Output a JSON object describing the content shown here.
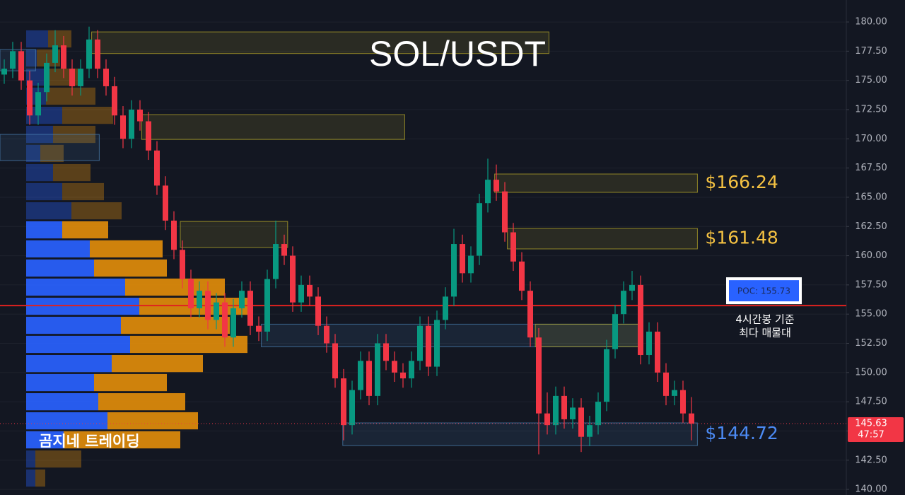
{
  "chart_data": {
    "type": "candlestick",
    "title": "SOL/USDT",
    "ylim": [
      139.52,
      181.88
    ],
    "yticks": [
      {
        "value": 140,
        "label": "140.00"
      },
      {
        "value": 142.5,
        "label": "142.50"
      },
      {
        "value": 145,
        "label": "145.00"
      },
      {
        "value": 147.5,
        "label": "147.50"
      },
      {
        "value": 150,
        "label": "150.00"
      },
      {
        "value": 152.5,
        "label": "152.50"
      },
      {
        "value": 155,
        "label": "155.00"
      },
      {
        "value": 157.5,
        "label": "157.50"
      },
      {
        "value": 160,
        "label": "160.00"
      },
      {
        "value": 162.5,
        "label": "162.50"
      },
      {
        "value": 165,
        "label": "165.00"
      },
      {
        "value": 167.5,
        "label": "167.50"
      },
      {
        "value": 170,
        "label": "170.00"
      },
      {
        "value": 172.5,
        "label": "172.50"
      },
      {
        "value": 175,
        "label": "175.00"
      },
      {
        "value": 177.5,
        "label": "177.50"
      },
      {
        "value": 180,
        "label": "180.00"
      }
    ],
    "grid": true,
    "up_color": "#089981",
    "down_color": "#f23645",
    "candles": [
      [
        175.5,
        176.8,
        174.7,
        176.0
      ],
      [
        176.0,
        178.3,
        175.2,
        177.5
      ],
      [
        177.5,
        178.3,
        174.2,
        175.0
      ],
      [
        175.0,
        175.8,
        171.2,
        172.0
      ],
      [
        172.0,
        174.8,
        171.2,
        174.0
      ],
      [
        174.0,
        177.3,
        173.2,
        176.5
      ],
      [
        176.5,
        179.3,
        175.7,
        178.0
      ],
      [
        178.0,
        178.8,
        175.2,
        176.0
      ],
      [
        176.0,
        176.8,
        173.7,
        174.5
      ],
      [
        174.5,
        176.8,
        173.7,
        176.0
      ],
      [
        176.0,
        179.6,
        175.2,
        178.5
      ],
      [
        178.5,
        179.3,
        175.2,
        176.0
      ],
      [
        176.0,
        176.8,
        173.7,
        174.5
      ],
      [
        174.5,
        175.3,
        171.2,
        172.0
      ],
      [
        172.0,
        172.8,
        169.2,
        170.0
      ],
      [
        170.0,
        173.3,
        169.2,
        172.5
      ],
      [
        172.5,
        173.3,
        170.7,
        171.5
      ],
      [
        171.5,
        172.3,
        168.2,
        169.0
      ],
      [
        169.0,
        169.8,
        165.2,
        166.0
      ],
      [
        166.0,
        166.8,
        162.2,
        163.0
      ],
      [
        163.0,
        163.8,
        159.7,
        160.5
      ],
      [
        160.5,
        161.3,
        157.2,
        158.0
      ],
      [
        158.0,
        158.8,
        154.7,
        155.5
      ],
      [
        155.5,
        157.8,
        154.7,
        157.0
      ],
      [
        157.0,
        157.8,
        153.7,
        154.5
      ],
      [
        154.5,
        156.8,
        153.7,
        156.0
      ],
      [
        156.0,
        156.8,
        152.2,
        153.0
      ],
      [
        153.0,
        156.3,
        152.2,
        155.5
      ],
      [
        155.5,
        157.8,
        154.7,
        157.0
      ],
      [
        157.0,
        157.8,
        153.2,
        154.0
      ],
      [
        154.0,
        154.8,
        152.7,
        153.5
      ],
      [
        153.5,
        158.8,
        152.7,
        158.0
      ],
      [
        158.0,
        163.0,
        157.2,
        161.0
      ],
      [
        161.0,
        161.8,
        159.2,
        160.0
      ],
      [
        160.0,
        160.8,
        155.2,
        156.0
      ],
      [
        156.0,
        158.3,
        155.2,
        157.5
      ],
      [
        157.5,
        158.3,
        155.7,
        156.5
      ],
      [
        156.5,
        157.3,
        153.2,
        154.0
      ],
      [
        154.0,
        154.8,
        151.7,
        152.5
      ],
      [
        152.5,
        153.3,
        148.7,
        149.5
      ],
      [
        149.5,
        150.3,
        144.2,
        145.5
      ],
      [
        145.5,
        149.3,
        144.7,
        148.5
      ],
      [
        148.5,
        151.8,
        147.7,
        151.0
      ],
      [
        151.0,
        151.8,
        147.2,
        148.0
      ],
      [
        148.0,
        153.3,
        147.2,
        152.5
      ],
      [
        152.5,
        153.3,
        150.2,
        151.0
      ],
      [
        151.0,
        151.8,
        149.2,
        150.0
      ],
      [
        150.0,
        150.8,
        148.7,
        149.5
      ],
      [
        149.5,
        151.8,
        148.7,
        151.0
      ],
      [
        151.0,
        154.8,
        150.2,
        154.0
      ],
      [
        154.0,
        154.8,
        149.7,
        150.5
      ],
      [
        150.5,
        155.3,
        149.7,
        154.5
      ],
      [
        154.5,
        157.3,
        153.7,
        156.5
      ],
      [
        156.5,
        162.3,
        155.7,
        161.0
      ],
      [
        161.0,
        161.8,
        157.7,
        158.5
      ],
      [
        158.5,
        160.8,
        157.7,
        160.0
      ],
      [
        160.0,
        165.3,
        159.2,
        164.5
      ],
      [
        164.5,
        168.3,
        163.7,
        166.5
      ],
      [
        166.5,
        167.8,
        164.7,
        165.5
      ],
      [
        165.5,
        166.3,
        161.2,
        162.0
      ],
      [
        162.0,
        162.8,
        158.7,
        159.5
      ],
      [
        159.5,
        160.3,
        156.2,
        157.0
      ],
      [
        157.0,
        157.8,
        152.2,
        153.0
      ],
      [
        153.0,
        153.8,
        143.0,
        146.5
      ],
      [
        146.5,
        148.3,
        144.7,
        145.5
      ],
      [
        145.5,
        148.8,
        144.7,
        148.0
      ],
      [
        148.0,
        148.8,
        145.2,
        146.0
      ],
      [
        146.0,
        147.8,
        145.2,
        147.0
      ],
      [
        147.0,
        147.8,
        143.2,
        144.5
      ],
      [
        144.5,
        146.3,
        143.7,
        145.5
      ],
      [
        145.5,
        148.3,
        144.7,
        147.5
      ],
      [
        147.5,
        152.8,
        146.7,
        152.0
      ],
      [
        152.0,
        155.8,
        151.2,
        155.0
      ],
      [
        155.0,
        157.8,
        154.2,
        157.0
      ],
      [
        157.0,
        158.7,
        156.2,
        157.5
      ],
      [
        157.5,
        158.3,
        150.7,
        151.5
      ],
      [
        151.5,
        154.3,
        150.7,
        153.5
      ],
      [
        153.5,
        154.3,
        149.2,
        150.0
      ],
      [
        150.0,
        150.8,
        147.2,
        148.0
      ],
      [
        148.0,
        149.3,
        147.2,
        148.5
      ],
      [
        148.5,
        149.3,
        145.7,
        146.5
      ],
      [
        146.5,
        147.9,
        144.2,
        145.63
      ]
    ],
    "volume_profile": {
      "buy_color": "#2962ff",
      "sell_color": "#e08c0b",
      "value_area": [
        144.24,
        162.21
      ],
      "prices": [
        178.55,
        176.92,
        175.28,
        173.65,
        172.01,
        170.38,
        168.75,
        167.11,
        165.48,
        163.84,
        162.21,
        160.58,
        158.94,
        157.31,
        155.67,
        154.04,
        152.41,
        150.77,
        149.14,
        147.5,
        145.87,
        144.24,
        142.6,
        140.97
      ],
      "buy": [
        31,
        15,
        25,
        28,
        51,
        38,
        20,
        38,
        51,
        64,
        51,
        90,
        96,
        140,
        160,
        134,
        147,
        121,
        96,
        102,
        115,
        53,
        13,
        13
      ],
      "sell": [
        33,
        33,
        48,
        70,
        72,
        60,
        33,
        53,
        59,
        71,
        65,
        103,
        103,
        141,
        160,
        154,
        166,
        129,
        103,
        123,
        128,
        165,
        65,
        14
      ]
    },
    "zones": [
      {
        "low": 177.3,
        "high": 179.15,
        "from": 10.3,
        "to": 64.2,
        "color": "#b7a82a"
      },
      {
        "low": 169.95,
        "high": 172.07,
        "from": 16.2,
        "to": 47.2,
        "color": "#b7a82a"
      },
      {
        "low": 165.42,
        "high": 166.99,
        "from": 57.8,
        "to": 81.7,
        "color": "#b7a82a",
        "label": "$166.24",
        "label_color": "#f5c242"
      },
      {
        "low": 160.7,
        "high": 162.93,
        "from": 20.75,
        "to": 33.4,
        "color": "#b7a82a"
      },
      {
        "low": 160.58,
        "high": 162.33,
        "from": 59.3,
        "to": 81.7,
        "color": "#b7a82a",
        "label": "$161.48",
        "label_color": "#f5c242"
      },
      {
        "low": 152.2,
        "high": 154.14,
        "from": 30.3,
        "to": 74.9,
        "color": "#4a7fb0"
      },
      {
        "low": 152.2,
        "high": 154.14,
        "from": 62.6,
        "to": 74.9,
        "color": "#b7a82a"
      },
      {
        "low": 143.75,
        "high": 145.69,
        "from": 39.9,
        "to": 81.7,
        "color": "#4a7fb0",
        "label": "$144.72",
        "label_color": "#4c8bf5"
      },
      {
        "low": 168.14,
        "high": 170.38,
        "from": -0.5,
        "to": 11.2,
        "color": "#4a7fb0"
      },
      {
        "low": 175.82,
        "high": 177.64,
        "from": -0.5,
        "to": 3.7,
        "color": "#4a7fb0"
      }
    ],
    "poc": {
      "value": 155.73,
      "label": "POC: 155.73",
      "color": "#e0221f"
    },
    "annotation": [
      "4시간봉 기준",
      "최다 매물대"
    ],
    "last_price": {
      "value": 145.63,
      "label": "145.63",
      "countdown": "47:57"
    }
  },
  "watermark": "곰지네 트레이딩"
}
